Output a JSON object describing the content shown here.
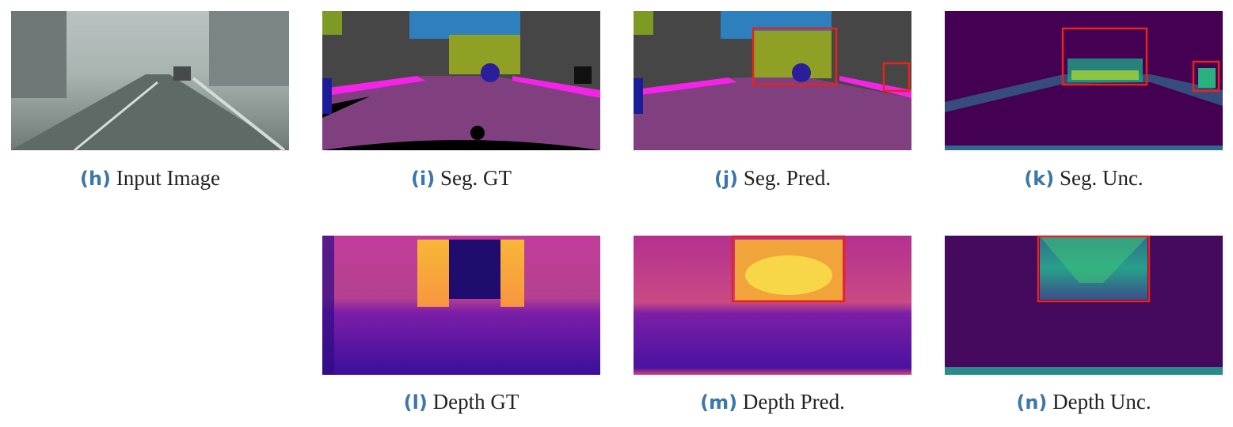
{
  "panels": [
    {
      "label": "(h)",
      "caption": "Input Image"
    },
    {
      "label": "(i)",
      "caption": "Seg. GT"
    },
    {
      "label": "(j)",
      "caption": "Seg. Pred."
    },
    {
      "label": "(k)",
      "caption": "Seg. Unc."
    },
    {
      "label": "(l)",
      "caption": "Depth GT"
    },
    {
      "label": "(m)",
      "caption": "Depth Pred."
    },
    {
      "label": "(n)",
      "caption": "Depth Unc."
    }
  ]
}
